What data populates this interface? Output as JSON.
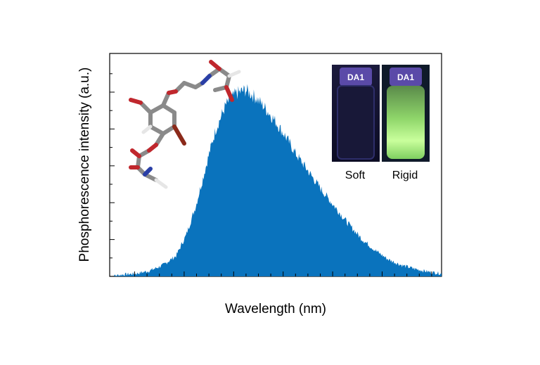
{
  "chart_data": {
    "type": "area",
    "title": "",
    "xlabel": "Wavelength (nm)",
    "ylabel": "Phosphorescence intensity (a.u.)",
    "x_tick_labels_shown": false,
    "y_tick_labels_shown": false,
    "xlim": [
      0,
      1
    ],
    "ylim": [
      0,
      1
    ],
    "grid": false,
    "fill_color": "#0a73bd",
    "series": [
      {
        "x": [
          0.0,
          0.04,
          0.08,
          0.12,
          0.16,
          0.2,
          0.23,
          0.26,
          0.28,
          0.3,
          0.32,
          0.35,
          0.38,
          0.41,
          0.44,
          0.47,
          0.5,
          0.53,
          0.56,
          0.6,
          0.64,
          0.68,
          0.72,
          0.76,
          0.8,
          0.84,
          0.88,
          0.92,
          0.96,
          1.0
        ],
        "values": [
          0.0,
          0.01,
          0.015,
          0.03,
          0.06,
          0.11,
          0.22,
          0.38,
          0.52,
          0.66,
          0.79,
          0.92,
          0.98,
          1.0,
          0.96,
          0.9,
          0.83,
          0.75,
          0.66,
          0.56,
          0.46,
          0.37,
          0.28,
          0.2,
          0.14,
          0.09,
          0.06,
          0.04,
          0.025,
          0.015
        ]
      }
    ]
  },
  "inset_photo": {
    "vials": [
      {
        "cap_label": "DA1",
        "caption": "Soft",
        "glow_color": "#1a1a3a"
      },
      {
        "cap_label": "DA1",
        "caption": "Rigid",
        "glow_color": "#9df07a"
      }
    ]
  },
  "molecule_icon": "molecule-structure-icon"
}
